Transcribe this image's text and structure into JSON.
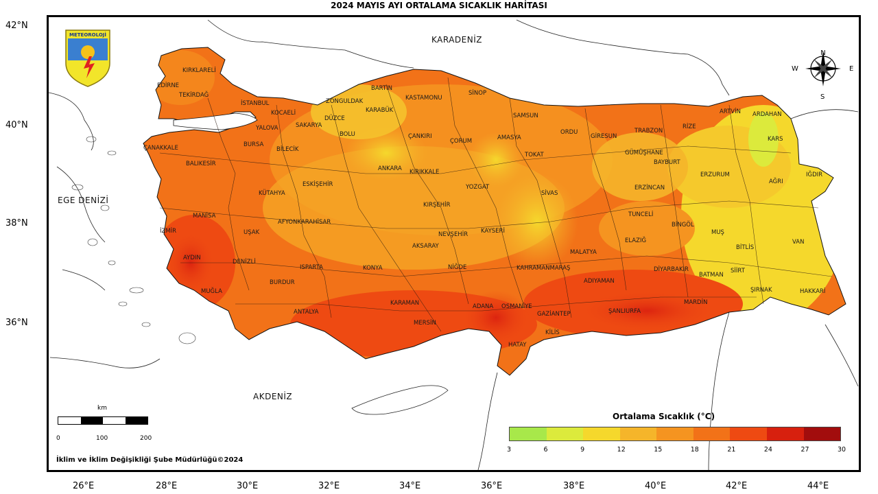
{
  "title": "2024 MAYIS AYI ORTALAMA SICAKLIK HARİTASI",
  "lat_labels": [
    "42°N",
    "40°N",
    "38°N",
    "36°N"
  ],
  "lon_labels": [
    "26°E",
    "28°E",
    "30°E",
    "32°E",
    "34°E",
    "36°E",
    "38°E",
    "40°E",
    "42°E",
    "44°E"
  ],
  "seas": {
    "black_sea": "KARADENİZ",
    "aegean": "EGE DENİZİ",
    "mediterranean": "AKDENİZ"
  },
  "logo_text": "METEOROLOJİ",
  "compass": {
    "west": "W",
    "east": "E",
    "north": "N",
    "south": "S"
  },
  "cities": [
    "KIRKLARELİ",
    "EDİRNE",
    "TEKİRDAĞ",
    "İSTANBUL",
    "KOCAELİ",
    "SAKARYA",
    "DÜZCE",
    "ZONGULDAK",
    "BARTIN",
    "KARABÜK",
    "KASTAMONU",
    "SİNOP",
    "SAMSUN",
    "ORDU",
    "GİRESUN",
    "TRABZON",
    "RİZE",
    "ARTVİN",
    "ARDAHAN",
    "KARS",
    "IĞDIR",
    "ERZURUM",
    "AĞRI",
    "BAYBURT",
    "GÜMÜŞHANE",
    "ERZİNCAN",
    "TUNCELİ",
    "BİNGÖL",
    "MUŞ",
    "BİTLİS",
    "VAN",
    "HAKKARİ",
    "ŞIRNAK",
    "SİİRT",
    "BATMAN",
    "MARDİN",
    "DİYARBAKIR",
    "ŞANLIURFA",
    "ADIYAMAN",
    "MALATYA",
    "ELAZIĞ",
    "KAHRAMANMARAŞ",
    "GAZİANTEP",
    "KİLİS",
    "HATAY",
    "OSMANİYE",
    "ADANA",
    "MERSİN",
    "KARAMAN",
    "ANTALYA",
    "MUĞLA",
    "AYDIN",
    "İZMİR",
    "MANİSA",
    "BALIKESİR",
    "ÇANAKKALE",
    "BURSA",
    "YALOVA",
    "BİLECİK",
    "BOLU",
    "ÇANKIRI",
    "ÇORUM",
    "AMASYA",
    "TOKAT",
    "SİVAS",
    "YOZGAT",
    "KIRIKKALE",
    "ANKARA",
    "ESKİŞEHİR",
    "KÜTAHYA",
    "UŞAK",
    "DENİZLİ",
    "BURDUR",
    "ISPARTA",
    "AFYONKARAHİSAR",
    "KONYA",
    "AKSARAY",
    "NEVŞEHİR",
    "KIRŞEHİR",
    "KAYSERİ",
    "NİĞDE"
  ],
  "scale": {
    "unit": "km",
    "labels": [
      "0",
      "100",
      "200"
    ]
  },
  "legend": {
    "title": "Ortalama Sıcaklık (°C)",
    "ticks": [
      "3",
      "6",
      "9",
      "12",
      "15",
      "18",
      "21",
      "24",
      "27",
      "30"
    ],
    "colors": [
      "#a8e84a",
      "#dcea3c",
      "#f5d82c",
      "#f5b52a",
      "#f59420",
      "#f27218",
      "#ee4a12",
      "#d7200e",
      "#a20d0d"
    ]
  },
  "credit": "İklim ve İklim Değişikliği Şube Müdürlüğü©2024"
}
